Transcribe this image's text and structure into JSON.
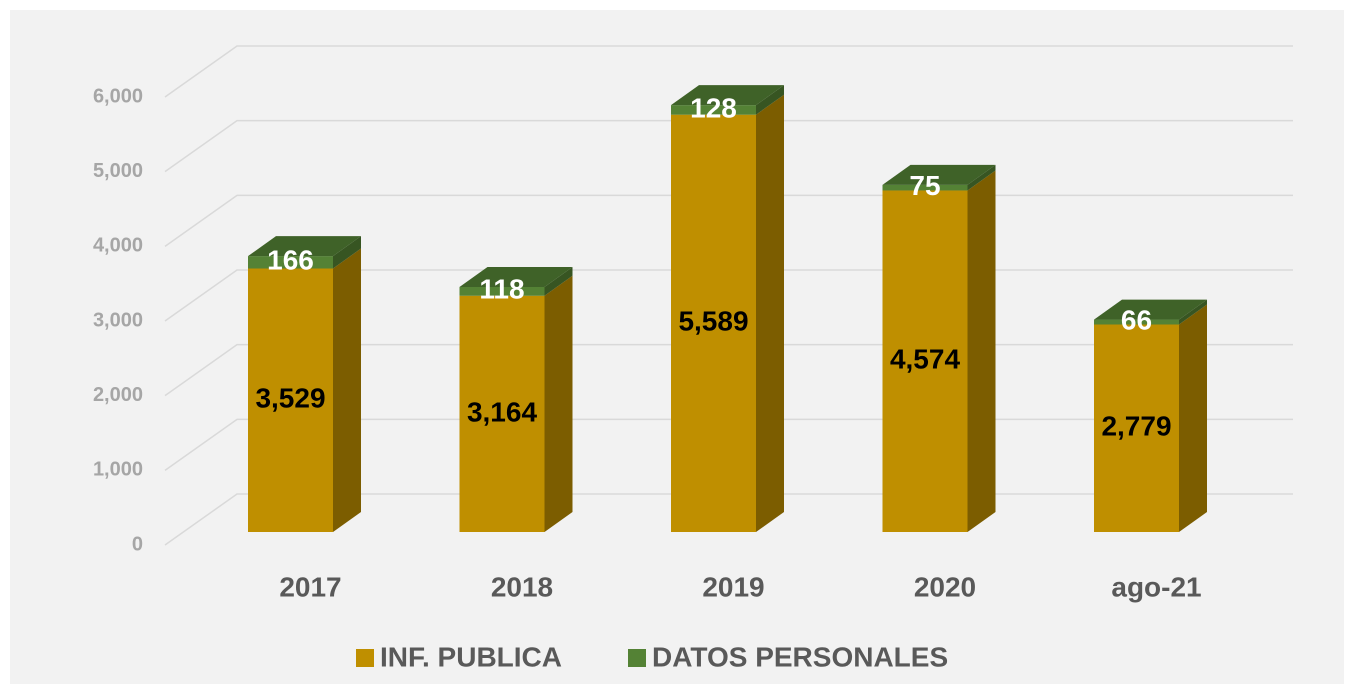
{
  "chart_data": {
    "type": "bar3d_stacked",
    "categories": [
      "2017",
      "2018",
      "2019",
      "2020",
      "ago-21"
    ],
    "series": [
      {
        "name": "INF. PUBLICA",
        "color": "#bf8f00",
        "values": [
          3529,
          3164,
          5589,
          4574,
          2779
        ],
        "value_labels": [
          "3,529",
          "3,164",
          "5,589",
          "4,574",
          "2,779"
        ]
      },
      {
        "name": "DATOS PERSONALES",
        "color": "#548235",
        "values": [
          166,
          118,
          128,
          75,
          66
        ]
      }
    ],
    "ylim": [
      0,
      6000
    ],
    "yticks": [
      0,
      {
        "value": 1000,
        "label": "1,000"
      },
      {
        "value": 2000,
        "label": "2,000"
      },
      {
        "value": 3000,
        "label": "3,000"
      },
      {
        "value": 4000,
        "label": "4,000"
      },
      {
        "value": 5000,
        "label": "5,000"
      },
      {
        "value": 6000,
        "label": "6,000"
      }
    ],
    "grid": true,
    "legend": "bottom"
  }
}
